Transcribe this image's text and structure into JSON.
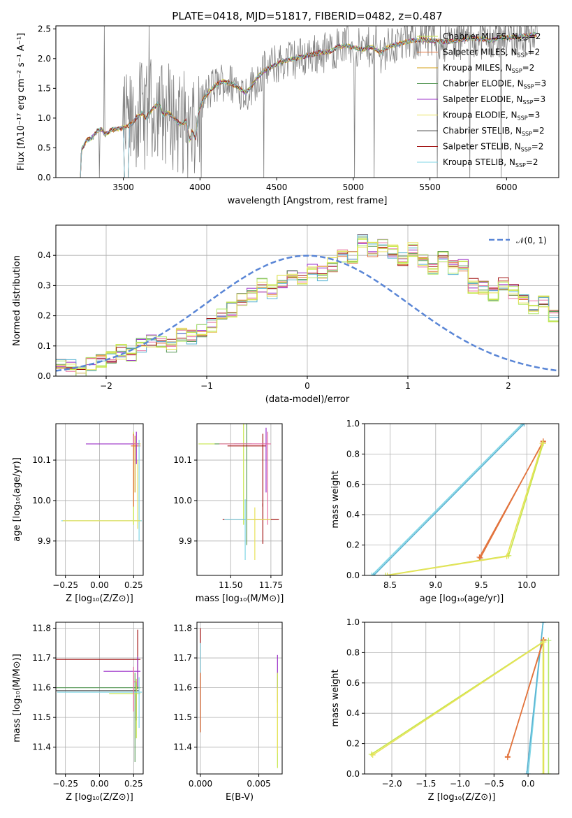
{
  "title": "PLATE=0418, MJD=51817, FIBERID=0482, z=0.487",
  "colors": {
    "grey": "#808080",
    "dashed": "#5a86d6",
    "models": [
      "#c8e64c",
      "#e2733c",
      "#d4a017",
      "#5a9a5a",
      "#9b30c8",
      "#e8e25a",
      "#555555",
      "#a01010",
      "#7fd6e6",
      "#e870a0",
      "#5ab4d2",
      "#b3e86a"
    ]
  },
  "chart_data": [
    {
      "id": "spectrum",
      "type": "line",
      "xlabel": "wavelength [Angstrom, rest frame]",
      "ylabel": "Flux [f$_\\lambda$10$^{-17}$ erg cm$^{-2}$ s$^{-1}$ A$^{-1}$]",
      "ylabel_display": "Flux [fλ10⁻¹⁷ erg cm⁻² s⁻¹ A⁻¹]",
      "xlim": [
        3060,
        6340
      ],
      "ylim": [
        0,
        2.55
      ],
      "xticks": [
        3500,
        4000,
        4500,
        5000,
        5500,
        6000
      ],
      "yticks": [
        0.0,
        0.5,
        1.0,
        1.5,
        2.0,
        2.5
      ],
      "ytick_labels": [
        "0.0",
        "0.5",
        "1.0",
        "1.5",
        "2.0",
        "2.5"
      ],
      "legend_position": "upper-right",
      "model_curve": [
        [
          3220,
          0.0
        ],
        [
          3225,
          0.45
        ],
        [
          3260,
          0.62
        ],
        [
          3300,
          0.68
        ],
        [
          3330,
          0.78
        ],
        [
          3360,
          0.82
        ],
        [
          3380,
          0.72
        ],
        [
          3420,
          0.8
        ],
        [
          3470,
          0.82
        ],
        [
          3520,
          0.85
        ],
        [
          3560,
          0.92
        ],
        [
          3590,
          1.02
        ],
        [
          3620,
          1.08
        ],
        [
          3650,
          1.0
        ],
        [
          3680,
          1.12
        ],
        [
          3700,
          1.18
        ],
        [
          3730,
          1.25
        ],
        [
          3760,
          1.05
        ],
        [
          3790,
          1.1
        ],
        [
          3830,
          1.0
        ],
        [
          3870,
          0.9
        ],
        [
          3910,
          0.95
        ],
        [
          3935,
          0.6
        ],
        [
          3950,
          0.8
        ],
        [
          3970,
          0.62
        ],
        [
          3990,
          1.1
        ],
        [
          4020,
          1.3
        ],
        [
          4060,
          1.45
        ],
        [
          4100,
          1.55
        ],
        [
          4150,
          1.62
        ],
        [
          4200,
          1.58
        ],
        [
          4260,
          1.5
        ],
        [
          4300,
          1.42
        ],
        [
          4340,
          1.55
        ],
        [
          4380,
          1.7
        ],
        [
          4420,
          1.8
        ],
        [
          4480,
          1.88
        ],
        [
          4520,
          1.93
        ],
        [
          4580,
          1.98
        ],
        [
          4650,
          2.02
        ],
        [
          4700,
          2.05
        ],
        [
          4780,
          2.1
        ],
        [
          4850,
          2.12
        ],
        [
          4900,
          2.2
        ],
        [
          4960,
          2.22
        ],
        [
          5010,
          2.18
        ],
        [
          5060,
          2.15
        ],
        [
          5120,
          2.2
        ],
        [
          5180,
          2.1
        ],
        [
          5230,
          2.2
        ],
        [
          5300,
          2.25
        ],
        [
          5380,
          2.3
        ],
        [
          5450,
          2.32
        ],
        [
          5520,
          2.3
        ],
        [
          5600,
          2.28
        ],
        [
          5680,
          2.3
        ],
        [
          5760,
          2.35
        ],
        [
          5840,
          2.33
        ],
        [
          5900,
          2.3
        ],
        [
          5960,
          2.36
        ],
        [
          6020,
          2.35
        ],
        [
          6100,
          2.38
        ],
        [
          6180,
          2.4
        ]
      ],
      "series": [
        {
          "name": "Chabrier MILES, N",
          "sub": "SSP",
          "suffix": "=2"
        },
        {
          "name": "Salpeter MILES, N",
          "sub": "SSP",
          "suffix": "=2"
        },
        {
          "name": "Kroupa MILES, N",
          "sub": "SSP",
          "suffix": "=2"
        },
        {
          "name": "Chabrier ELODIE, N",
          "sub": "SSP",
          "suffix": "=3"
        },
        {
          "name": "Salpeter ELODIE, N",
          "sub": "SSP",
          "suffix": "=3"
        },
        {
          "name": "Kroupa ELODIE, N",
          "sub": "SSP",
          "suffix": "=3"
        },
        {
          "name": "Chabrier STELIB, N",
          "sub": "SSP",
          "suffix": "=2"
        },
        {
          "name": "Salpeter STELIB, N",
          "sub": "SSP",
          "suffix": "=2"
        },
        {
          "name": "Kroupa STELIB, N",
          "sub": "SSP",
          "suffix": "=2"
        }
      ]
    },
    {
      "id": "residuals",
      "type": "histogram",
      "xlabel": "(data-model)/error",
      "ylabel": "Normed distribution",
      "xlim": [
        -2.5,
        2.5
      ],
      "ylim": [
        0,
        0.5
      ],
      "xticks": [
        -2,
        -1,
        0,
        1,
        2
      ],
      "xtick_labels": [
        "−2",
        "−1",
        "0",
        "1",
        "2"
      ],
      "yticks": [
        0.0,
        0.1,
        0.2,
        0.3,
        0.4
      ],
      "ytick_labels": [
        "0.0",
        "0.1",
        "0.2",
        "0.3",
        "0.4"
      ],
      "legend_position": "upper-right",
      "gauss_label": "𝒩(0, 1)",
      "bin_width": 0.1,
      "hist_base": [
        0.04,
        0.03,
        0.02,
        0.04,
        0.05,
        0.06,
        0.08,
        0.07,
        0.1,
        0.12,
        0.11,
        0.1,
        0.14,
        0.13,
        0.15,
        0.17,
        0.2,
        0.22,
        0.25,
        0.27,
        0.3,
        0.28,
        0.31,
        0.33,
        0.32,
        0.35,
        0.34,
        0.37,
        0.4,
        0.39,
        0.45,
        0.42,
        0.43,
        0.41,
        0.39,
        0.42,
        0.38,
        0.35,
        0.4,
        0.36,
        0.37,
        0.3,
        0.29,
        0.27,
        0.31,
        0.28,
        0.25,
        0.23,
        0.24,
        0.2,
        0.18,
        0.19,
        0.16,
        0.14,
        0.17,
        0.12,
        0.13,
        0.11,
        0.14,
        0.12,
        0.1,
        0.13,
        0.09,
        0.1,
        0.08,
        0.09,
        0.08,
        0.06,
        0.07,
        0.05,
        0.05,
        0.04,
        0.03,
        0.04,
        0.03,
        0.03,
        0.03,
        0.02,
        0.03,
        0.02,
        0.03,
        0.02,
        0.02,
        0.02,
        0.02,
        0.02,
        0.02,
        0.02,
        0.02,
        0.02,
        0.02,
        0.02,
        0.02,
        0.02,
        0.02,
        0.02,
        0.02,
        0.02,
        0.02,
        0.02
      ]
    },
    {
      "id": "age-vs-Z",
      "type": "errorbar",
      "xlabel": "Z [log₁₀(Z/Z⊙)]",
      "ylabel": "age  [log₁₀(age/yr)]",
      "xlim": [
        -0.32,
        0.32
      ],
      "ylim": [
        9.815,
        10.19
      ],
      "xticks": [
        -0.25,
        0.0,
        0.25
      ],
      "xtick_labels": [
        "−0.25",
        "0.00",
        "0.25"
      ],
      "yticks": [
        9.9,
        10.0,
        10.1
      ],
      "ytick_labels": [
        "9.9",
        "10.0",
        "10.1"
      ],
      "points": [
        {
          "x": 0.25,
          "y": 10.14,
          "xerr": [
            0.0,
            0.05
          ],
          "yerr": [
            0.2,
            0.03
          ],
          "c": 0
        },
        {
          "x": 0.25,
          "y": 10.135,
          "xerr": [
            0.02,
            0.05
          ],
          "yerr": [
            0.15,
            0.03
          ],
          "c": 1
        },
        {
          "x": 0.26,
          "y": 10.14,
          "xerr": [
            0.03,
            0.04
          ],
          "yerr": [
            0.12,
            0.02
          ],
          "c": 2
        },
        {
          "x": 0.27,
          "y": 10.14,
          "xerr": [
            0.37,
            0.02
          ],
          "yerr": [
            0.05,
            0.03
          ],
          "c": 4
        },
        {
          "x": 0.25,
          "y": 10.14,
          "xerr": [
            0.0,
            0.03
          ],
          "yerr": [
            0.0,
            0.02
          ],
          "c": 9
        },
        {
          "x": 0.29,
          "y": 9.95,
          "xerr": [
            0.57,
            0.02
          ],
          "yerr": [
            0.05,
            0.2
          ],
          "c": 8
        },
        {
          "x": 0.28,
          "y": 9.95,
          "xerr": [
            0.55,
            0.02
          ],
          "yerr": [
            0.02,
            0.15
          ],
          "c": 5
        }
      ]
    },
    {
      "id": "age-vs-mass",
      "type": "errorbar",
      "xlabel": "mass [log₁₀(M/M⊙)]",
      "ylabel": "",
      "xlim": [
        11.29,
        11.82
      ],
      "ylim": [
        9.815,
        10.19
      ],
      "xticks": [
        11.5,
        11.75
      ],
      "xtick_labels": [
        "11.50",
        "11.75"
      ],
      "yticks": [
        9.9,
        10.0,
        10.1
      ],
      "ytick_labels": [
        "9.9",
        "10.0",
        "10.1"
      ],
      "points": [
        {
          "x": 11.58,
          "y": 10.14,
          "xerr": [
            0.28,
            0.02
          ],
          "yerr": [
            0.2,
            0.05
          ],
          "c": 0
        },
        {
          "x": 11.6,
          "y": 10.14,
          "xerr": [
            0.2,
            0.03
          ],
          "yerr": [
            0.25,
            0.05
          ],
          "c": 3
        },
        {
          "x": 11.7,
          "y": 10.135,
          "xerr": [
            0.22,
            0.02
          ],
          "yerr": [
            0.15,
            0.03
          ],
          "c": 7
        },
        {
          "x": 11.72,
          "y": 10.14,
          "xerr": [
            0.2,
            0.02
          ],
          "yerr": [
            0.12,
            0.04
          ],
          "c": 4
        },
        {
          "x": 11.73,
          "y": 10.14,
          "xerr": [
            0.3,
            0.02
          ],
          "yerr": [
            0.2,
            0.03
          ],
          "c": 9
        },
        {
          "x": 11.7,
          "y": 9.953,
          "xerr": [
            0.25,
            0.1
          ],
          "yerr": [
            0.06,
            0.04
          ],
          "c": 7
        },
        {
          "x": 11.59,
          "y": 9.953,
          "xerr": [
            0.13,
            0.05
          ],
          "yerr": [
            0.1,
            0.05
          ],
          "c": 8
        },
        {
          "x": 11.65,
          "y": 9.953,
          "xerr": [
            0.05,
            0.1
          ],
          "yerr": [
            0.1,
            0.03
          ],
          "c": 5
        }
      ]
    },
    {
      "id": "weight-vs-age",
      "type": "line",
      "xlabel": "age  [log₁₀(age/yr)]",
      "ylabel": "mass weight",
      "xlim": [
        8.22,
        10.35
      ],
      "ylim": [
        0,
        1
      ],
      "xticks": [
        8.5,
        9.0,
        9.5,
        10.0
      ],
      "xtick_labels": [
        "8.5",
        "9.0",
        "9.5",
        "10.0"
      ],
      "yticks": [
        0.0,
        0.2,
        0.4,
        0.6,
        0.8,
        1.0
      ],
      "ytick_labels": [
        "0.0",
        "0.2",
        "0.4",
        "0.6",
        "0.8",
        "1.0"
      ],
      "series": [
        {
          "c": 8,
          "x": [
            8.3,
            9.95
          ],
          "y": [
            0.0,
            1.0
          ]
        },
        {
          "c": 10,
          "x": [
            8.32,
            9.97
          ],
          "y": [
            0.0,
            1.0
          ]
        },
        {
          "c": 1,
          "x": [
            9.48,
            10.18
          ],
          "y": [
            0.12,
            0.88
          ]
        },
        {
          "c": 1,
          "x": [
            9.49,
            10.18
          ],
          "y": [
            0.115,
            0.885
          ]
        },
        {
          "c": 0,
          "x": [
            8.45,
            9.8,
            10.18
          ],
          "y": [
            0.0,
            0.13,
            0.87
          ]
        },
        {
          "c": 5,
          "x": [
            8.47,
            9.78,
            10.17
          ],
          "y": [
            0.0,
            0.125,
            0.87
          ]
        }
      ]
    },
    {
      "id": "mass-vs-Z",
      "type": "errorbar",
      "xlabel": "Z [log₁₀(Z/Z⊙)]",
      "ylabel": "mass [log₁₀(M/M⊙)]",
      "xlim": [
        -0.32,
        0.32
      ],
      "ylim": [
        11.31,
        11.82
      ],
      "xticks": [
        -0.25,
        0.0,
        0.25
      ],
      "xtick_labels": [
        "−0.25",
        "0.00",
        "0.25"
      ],
      "yticks": [
        11.4,
        11.5,
        11.6,
        11.7,
        11.8
      ],
      "ytick_labels": [
        "11.4",
        "11.5",
        "11.6",
        "11.7",
        "11.8"
      ],
      "points": [
        {
          "x": 0.28,
          "y": 11.695,
          "xerr": [
            0.6,
            0.02
          ],
          "yerr": [
            0.1,
            0.1
          ],
          "c": 7
        },
        {
          "x": 0.28,
          "y": 11.655,
          "xerr": [
            0.25,
            0.02
          ],
          "yerr": [
            0.05,
            0.05
          ],
          "c": 4
        },
        {
          "x": 0.26,
          "y": 11.6,
          "xerr": [
            0.6,
            0.04
          ],
          "yerr": [
            0.25,
            0.05
          ],
          "c": 3
        },
        {
          "x": 0.27,
          "y": 11.59,
          "xerr": [
            0.6,
            0.02
          ],
          "yerr": [
            0.1,
            0.03
          ],
          "c": 6
        },
        {
          "x": 0.27,
          "y": 11.58,
          "xerr": [
            0.2,
            0.03
          ],
          "yerr": [
            0.15,
            0.05
          ],
          "c": 0
        },
        {
          "x": 0.29,
          "y": 11.585,
          "xerr": [
            0.6,
            0.02
          ],
          "yerr": [
            0.12,
            0.05
          ],
          "c": 8
        },
        {
          "x": 0.25,
          "y": 11.62,
          "xerr": [
            0.0,
            0.02
          ],
          "yerr": [
            0.1,
            0.05
          ],
          "c": 9
        }
      ]
    },
    {
      "id": "mass-vs-ebv",
      "type": "errorbar",
      "xlabel": "E(B-V)",
      "ylabel": "",
      "xlim": [
        -0.0003,
        0.007
      ],
      "ylim": [
        11.31,
        11.82
      ],
      "xticks": [
        0.0,
        0.005
      ],
      "xtick_labels": [
        "0.000",
        "0.005"
      ],
      "yticks": [
        11.4,
        11.5,
        11.6,
        11.7,
        11.8
      ],
      "ytick_labels": [
        "11.4",
        "11.5",
        "11.6",
        "11.7",
        "11.8"
      ],
      "points": [
        {
          "x": 0.0,
          "y": 11.7,
          "xerr": [
            0,
            0
          ],
          "yerr": [
            0.25,
            0.1
          ],
          "c": 7
        },
        {
          "x": 0.0,
          "y": 11.6,
          "xerr": [
            0,
            0
          ],
          "yerr": [
            0.15,
            0.15
          ],
          "c": 8
        },
        {
          "x": 0.0,
          "y": 11.55,
          "xerr": [
            0,
            0
          ],
          "yerr": [
            0.1,
            0.1
          ],
          "c": 1
        },
        {
          "x": 0.0066,
          "y": 11.65,
          "xerr": [
            0,
            0
          ],
          "yerr": [
            0.1,
            0.06
          ],
          "c": 4
        },
        {
          "x": 0.0066,
          "y": 11.55,
          "xerr": [
            0,
            0
          ],
          "yerr": [
            0.22,
            0.1
          ],
          "c": 0
        },
        {
          "x": 0.0066,
          "y": 11.5,
          "xerr": [
            0,
            0
          ],
          "yerr": [
            0.12,
            0.1
          ],
          "c": 5
        }
      ]
    },
    {
      "id": "weight-vs-Z",
      "type": "line",
      "xlabel": "Z [log₁₀(Z/Z⊙)]",
      "ylabel": "mass weight",
      "xlim": [
        -2.4,
        0.45
      ],
      "ylim": [
        0,
        1
      ],
      "xticks": [
        -2.0,
        -1.5,
        -1.0,
        -0.5,
        0.0
      ],
      "xtick_labels": [
        "−2.0",
        "−1.5",
        "−1.0",
        "−0.5",
        "0.0"
      ],
      "yticks": [
        0.0,
        0.2,
        0.4,
        0.6,
        0.8,
        1.0
      ],
      "ytick_labels": [
        "0.0",
        "0.2",
        "0.4",
        "0.6",
        "0.8",
        "1.0"
      ],
      "series": [
        {
          "c": 8,
          "x": [
            0.0,
            0.22
          ],
          "y": [
            0.0,
            1.0
          ]
        },
        {
          "c": 10,
          "x": [
            -0.02,
            0.22
          ],
          "y": [
            0.0,
            1.0
          ]
        },
        {
          "c": 1,
          "x": [
            -0.3,
            0.22
          ],
          "y": [
            0.11,
            0.88
          ]
        },
        {
          "c": 1,
          "x": [
            -0.3,
            0.23
          ],
          "y": [
            0.115,
            0.885
          ]
        },
        {
          "c": 0,
          "x": [
            -2.3,
            0.22,
            0.22
          ],
          "y": [
            0.13,
            0.87,
            0.0
          ]
        },
        {
          "c": 5,
          "x": [
            -2.28,
            0.23,
            0.23
          ],
          "y": [
            0.125,
            0.87,
            0.0
          ]
        },
        {
          "c": 11,
          "x": [
            0.3,
            0.3
          ],
          "y": [
            0.0,
            0.88
          ]
        }
      ]
    }
  ]
}
